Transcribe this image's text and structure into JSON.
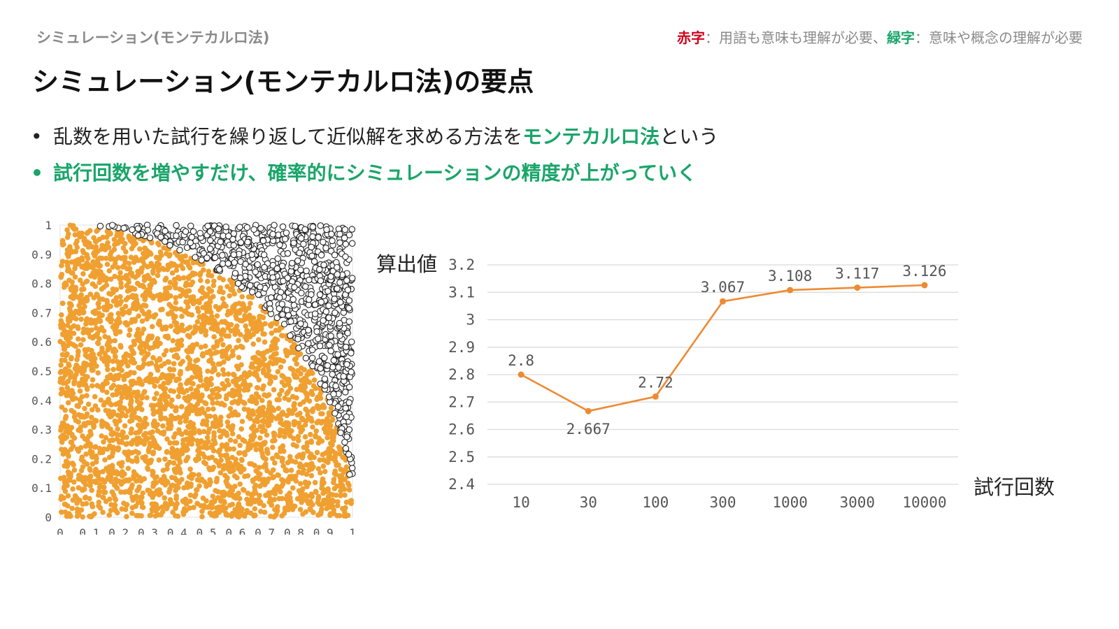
{
  "header": {
    "breadcrumb": "シミュレーション(モンテカルロ法)",
    "legend_red": "赤字",
    "legend_red_desc": "：用語も意味も理解が必要、",
    "legend_green": "緑字",
    "legend_green_desc": "：意味や概念の理解が必要",
    "red_color": "#d0021b",
    "green_color": "#1aa56a"
  },
  "title": "シミュレーション(モンテカルロ法)の要点",
  "bullets": {
    "b1_pre": "乱数を用いた試行を繰り返して近似解を求める方法を",
    "b1_highlight": "モンテカルロ法",
    "b1_post": "という",
    "b2": "試行回数を増やすだけ、確率的にシミュレーションの精度が上がっていく"
  },
  "chart_data": [
    {
      "type": "scatter",
      "description": "random points in unit square; inside quarter circle orange, outside black circles",
      "x_ticks": [
        "0",
        "0.1",
        "0.2",
        "0.3",
        "0.4",
        "0.5",
        "0.6",
        "0.7",
        "0.8",
        "0.9",
        "1"
      ],
      "y_ticks": [
        "0",
        "0.1",
        "0.2",
        "0.3",
        "0.4",
        "0.5",
        "0.6",
        "0.7",
        "0.8",
        "0.9",
        "1"
      ],
      "xlim": [
        0,
        1
      ],
      "ylim": [
        0,
        1
      ],
      "inside_color": "#f0a030",
      "outside_color": "#222222",
      "point_count": 4000
    },
    {
      "type": "line",
      "ylabel": "算出値",
      "xlabel": "試行回数",
      "categories": [
        "10",
        "30",
        "100",
        "300",
        "1000",
        "3000",
        "10000"
      ],
      "values": [
        2.8,
        2.667,
        2.72,
        3.067,
        3.108,
        3.117,
        3.126
      ],
      "data_labels": [
        "2.8",
        "2.667",
        "2.72",
        "3.067",
        "3.108",
        "3.117",
        "3.126"
      ],
      "y_ticks": [
        "2.4",
        "2.5",
        "2.6",
        "2.7",
        "2.8",
        "2.9",
        "3",
        "3.1",
        "3.2"
      ],
      "ylim": [
        2.4,
        3.2
      ],
      "grid": true,
      "line_color": "#ee8a33"
    }
  ]
}
